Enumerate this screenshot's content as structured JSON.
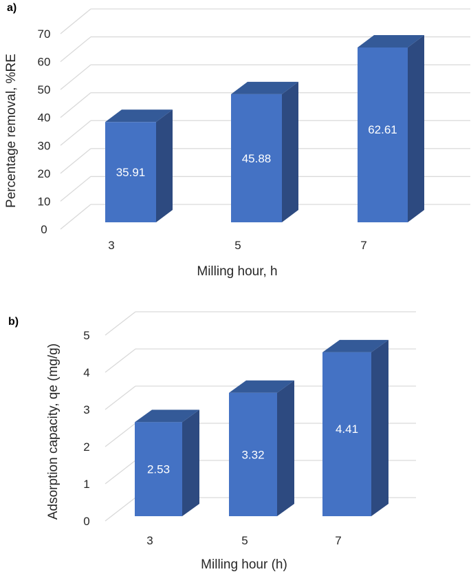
{
  "colors": {
    "front": "#4472C4",
    "top": "#345A98",
    "side": "#2D4A80",
    "grid": "#D9D9D9"
  },
  "chart_data": [
    {
      "type": "bar",
      "panel_label": "a)",
      "categories": [
        "3",
        "5",
        "7"
      ],
      "values": [
        35.91,
        45.88,
        62.61
      ],
      "data_labels": [
        "35.91",
        "45.88",
        "62.61"
      ],
      "xlabel": "Milling hour, h",
      "ylabel": "Percentage removal, %RE",
      "ylim": [
        0,
        70
      ],
      "yticks": [
        "0",
        "10",
        "20",
        "30",
        "40",
        "50",
        "60",
        "70"
      ],
      "grid": true,
      "style": "3d-column"
    },
    {
      "type": "bar",
      "panel_label": "b)",
      "categories": [
        "3",
        "5",
        "7"
      ],
      "values": [
        2.53,
        3.32,
        4.41
      ],
      "data_labels": [
        "2.53",
        "3.32",
        "4.41"
      ],
      "xlabel": "Milling hour (h)",
      "ylabel": "Adsorption capacity, qe (mg/g)",
      "ylim": [
        0,
        5
      ],
      "yticks": [
        "0",
        "1",
        "2",
        "3",
        "4",
        "5"
      ],
      "grid": true,
      "style": "3d-column"
    }
  ]
}
